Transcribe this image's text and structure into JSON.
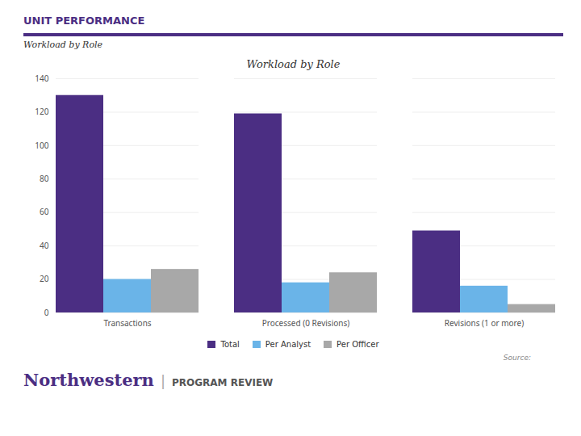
{
  "chart_data": {
    "type": "bar",
    "title": "Workload by Role",
    "subtitle": "Workload by Role",
    "annotations": [
      "UNIT PERFORMANCE",
      "Source:",
      "Northwestern",
      "|",
      "PROGRAM REVIEW"
    ],
    "categories": [
      "Transactions",
      "Processed (0 Revisions)",
      "Revisions (1 or more)"
    ],
    "series": [
      {
        "name": "Total",
        "color": "#4b2e83",
        "values": [
          130,
          119,
          49
        ]
      },
      {
        "name": "Per Analyst",
        "color": "#6ab4e8",
        "values": [
          20,
          18,
          16
        ]
      },
      {
        "name": "Per Officer",
        "color": "#a8a8a8",
        "values": [
          26,
          24,
          5
        ]
      }
    ],
    "ylim": [
      0,
      140
    ],
    "yticks": [
      0,
      20,
      40,
      60,
      80,
      100,
      120,
      140
    ],
    "grid": true,
    "legend": "bottom"
  }
}
